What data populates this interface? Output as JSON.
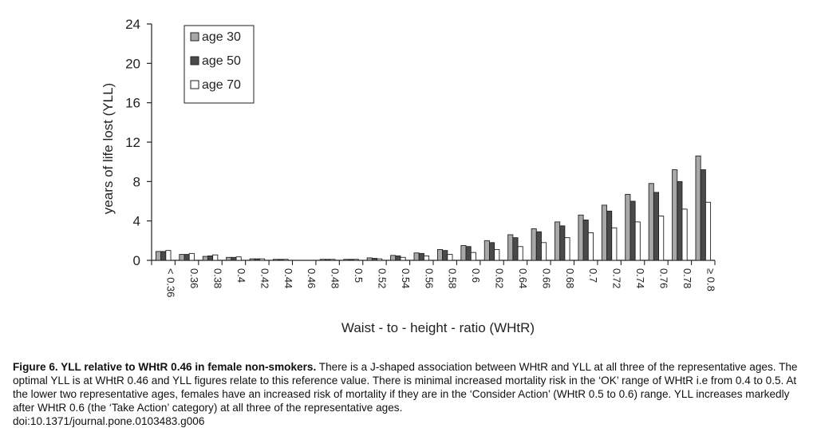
{
  "chart_data": {
    "type": "bar",
    "xlabel": "Waist - to - height - ratio (WHtR)",
    "ylabel": "years of life lost (YLL)",
    "ylim": [
      0,
      24
    ],
    "yticks": [
      0,
      4,
      8,
      12,
      16,
      20,
      24
    ],
    "legend_position": "top-left",
    "grid": false,
    "categories": [
      "< 0.36",
      "0.36",
      "0.38",
      "0.4",
      "0.42",
      "0.44",
      "0.46",
      "0.48",
      "0.5",
      "0.52",
      "0.54",
      "0.56",
      "0.58",
      "0.6",
      "0.62",
      "0.64",
      "0.66",
      "0.68",
      "0.7",
      "0.72",
      "0.74",
      "0.76",
      "0.78",
      "≥ 0.8"
    ],
    "series": [
      {
        "name": "age 30",
        "color": "#a8a8a8",
        "values": [
          0.9,
          0.6,
          0.4,
          0.3,
          0.15,
          0.1,
          0,
          0.1,
          0.1,
          0.25,
          0.5,
          0.75,
          1.1,
          1.5,
          2.0,
          2.6,
          3.2,
          3.9,
          4.6,
          5.6,
          6.7,
          7.8,
          9.2,
          10.6
        ]
      },
      {
        "name": "age 50",
        "color": "#4a4a4a",
        "values": [
          0.9,
          0.6,
          0.45,
          0.3,
          0.15,
          0.1,
          0,
          0.1,
          0.1,
          0.2,
          0.45,
          0.7,
          1.0,
          1.4,
          1.8,
          2.3,
          2.9,
          3.5,
          4.1,
          5.0,
          6.0,
          6.9,
          8.0,
          9.2
        ]
      },
      {
        "name": "age 70",
        "color": "#ffffff",
        "values": [
          1.0,
          0.7,
          0.55,
          0.35,
          0.15,
          0.1,
          0,
          0.1,
          0.1,
          0.15,
          0.3,
          0.45,
          0.6,
          0.8,
          1.1,
          1.4,
          1.8,
          2.3,
          2.8,
          3.3,
          3.9,
          4.5,
          5.2,
          5.9
        ]
      }
    ]
  },
  "caption": {
    "title": "Figure 6. YLL relative to WHtR 0.46 in female non-smokers.",
    "body": " There is a J-shaped association between WHtR and YLL at all three of the representative ages. The optimal YLL is at WHtR 0.46 and YLL figures relate to this reference value. There is minimal increased mortality risk in the ‘OK’ range of WHtR i.e from 0.4 to 0.5. At the lower two representative ages, females have an increased risk of mortality if they are in the ‘Consider Action’ (WHtR 0.5 to 0.6) range. YLL increases markedly after WHtR 0.6 (the ‘Take Action’ category) at all three of the representative ages.",
    "doi": "doi:10.1371/journal.pone.0103483.g006"
  }
}
